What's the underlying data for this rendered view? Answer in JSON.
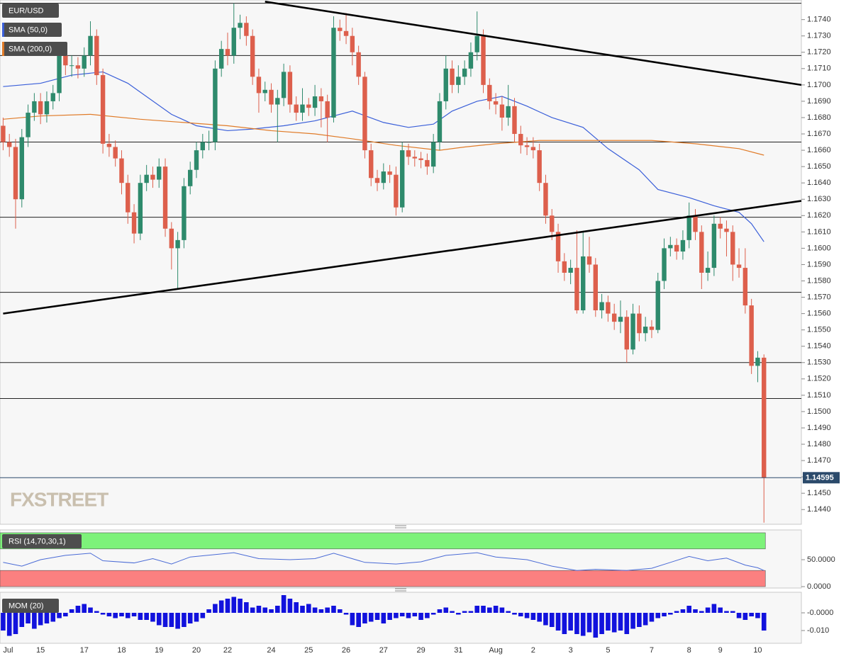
{
  "chart_data": [
    {
      "type": "candlestick",
      "title": "EUR/USD",
      "xlim": [
        -0.5,
        128
      ],
      "ylim": [
        1.1431,
        1.1752
      ],
      "yticks": [
        {
          "value": 1.144,
          "label": "1.1440"
        },
        {
          "value": 1.145,
          "label": "1.1450"
        },
        {
          "value": 1.146,
          "label": "1.1460"
        },
        {
          "value": 1.147,
          "label": "1.1470"
        },
        {
          "value": 1.148,
          "label": "1.1480"
        },
        {
          "value": 1.149,
          "label": "1.1490"
        },
        {
          "value": 1.15,
          "label": "1.1500"
        },
        {
          "value": 1.151,
          "label": "1.1510"
        },
        {
          "value": 1.152,
          "label": "1.1520"
        },
        {
          "value": 1.153,
          "label": "1.1530"
        },
        {
          "value": 1.154,
          "label": "1.1540"
        },
        {
          "value": 1.155,
          "label": "1.1550"
        },
        {
          "value": 1.156,
          "label": "1.1560"
        },
        {
          "value": 1.157,
          "label": "1.1570"
        },
        {
          "value": 1.158,
          "label": "1.1580"
        },
        {
          "value": 1.159,
          "label": "1.1590"
        },
        {
          "value": 1.16,
          "label": "1.1600"
        },
        {
          "value": 1.161,
          "label": "1.1610"
        },
        {
          "value": 1.162,
          "label": "1.1620"
        },
        {
          "value": 1.163,
          "label": "1.1630"
        },
        {
          "value": 1.164,
          "label": "1.1640"
        },
        {
          "value": 1.165,
          "label": "1.1650"
        },
        {
          "value": 1.166,
          "label": "1.1660"
        },
        {
          "value": 1.167,
          "label": "1.1670"
        },
        {
          "value": 1.168,
          "label": "1.1680"
        },
        {
          "value": 1.169,
          "label": "1.1690"
        },
        {
          "value": 1.17,
          "label": "1.1700"
        },
        {
          "value": 1.171,
          "label": "1.1710"
        },
        {
          "value": 1.172,
          "label": "1.1720"
        },
        {
          "value": 1.173,
          "label": "1.1730"
        },
        {
          "value": 1.174,
          "label": "1.1740"
        }
      ],
      "up_color": "#2e8a6c",
      "down_color": "#dd5f4c",
      "open": [
        1.1675,
        1.1665,
        1.1662,
        1.163,
        1.1668,
        1.1683,
        1.169,
        1.1682,
        1.169,
        1.1695,
        1.1718,
        1.1712,
        1.1712,
        1.171,
        1.1718,
        1.173,
        1.1706,
        1.1664,
        1.1662,
        1.1655,
        1.164,
        1.1622,
        1.1609,
        1.164,
        1.1645,
        1.1642,
        1.165,
        1.1612,
        1.16,
        1.1605,
        1.1638,
        1.1648,
        1.166,
        1.1665,
        1.1665,
        1.171,
        1.1722,
        1.1718,
        1.1735,
        1.1738,
        1.173,
        1.1705,
        1.1695,
        1.1697,
        1.1688,
        1.1692,
        1.1708,
        1.1688,
        1.1683,
        1.1688,
        1.1686,
        1.1693,
        1.169,
        1.168,
        1.1735,
        1.1733,
        1.173,
        1.172,
        1.1705,
        1.166,
        1.1643,
        1.164,
        1.1647,
        1.1645,
        1.1625,
        1.166,
        1.1656,
        1.1655,
        1.1654,
        1.165,
        1.1665,
        1.169,
        1.171,
        1.17,
        1.1705,
        1.171,
        1.172,
        1.173,
        1.17,
        1.169,
        1.1688,
        1.168,
        1.1687,
        1.167,
        1.1663,
        1.1662,
        1.166,
        1.164,
        1.162,
        1.161,
        1.1592,
        1.1585,
        1.1588,
        1.1562,
        1.1595,
        1.159,
        1.1562,
        1.1567,
        1.156,
        1.1555,
        1.1558,
        1.1538,
        1.156,
        1.1548,
        1.1552,
        1.155,
        1.158,
        1.16,
        1.1602,
        1.1598,
        1.1605,
        1.162,
        1.161,
        1.1585,
        1.1588,
        1.1615,
        1.1612,
        1.161,
        1.159,
        1.1588,
        1.1565,
        1.1528,
        1.1533
      ],
      "high": [
        1.168,
        1.167,
        1.1667,
        1.1673,
        1.1688,
        1.1695,
        1.1695,
        1.1696,
        1.17,
        1.1724,
        1.1722,
        1.1718,
        1.1717,
        1.1723,
        1.1739,
        1.1734,
        1.171,
        1.167,
        1.1666,
        1.166,
        1.1645,
        1.1627,
        1.1645,
        1.1651,
        1.165,
        1.1655,
        1.1655,
        1.1616,
        1.161,
        1.1643,
        1.1653,
        1.1665,
        1.167,
        1.1672,
        1.1715,
        1.1727,
        1.1732,
        1.175,
        1.1743,
        1.1742,
        1.1734,
        1.171,
        1.1702,
        1.1701,
        1.1697,
        1.1713,
        1.1712,
        1.1693,
        1.1698,
        1.1692,
        1.17,
        1.1698,
        1.1694,
        1.1742,
        1.174,
        1.1744,
        1.1735,
        1.1724,
        1.1708,
        1.1664,
        1.1648,
        1.1652,
        1.1651,
        1.165,
        1.1665,
        1.1664,
        1.166,
        1.1659,
        1.1658,
        1.167,
        1.1695,
        1.1718,
        1.1715,
        1.1712,
        1.1715,
        1.1726,
        1.1745,
        1.1734,
        1.1704,
        1.1695,
        1.1693,
        1.17,
        1.1692,
        1.1675,
        1.1668,
        1.1668,
        1.1664,
        1.1645,
        1.1624,
        1.1615,
        1.1597,
        1.1593,
        1.1611,
        1.161,
        1.1607,
        1.1594,
        1.1572,
        1.1571,
        1.1566,
        1.1568,
        1.1562,
        1.1566,
        1.1565,
        1.1558,
        1.1556,
        1.1585,
        1.1606,
        1.1607,
        1.1606,
        1.1611,
        1.1628,
        1.1624,
        1.1614,
        1.1598,
        1.162,
        1.1619,
        1.1617,
        1.1614,
        1.16,
        1.16,
        1.1569,
        1.1537,
        1.1535
      ],
      "low": [
        1.166,
        1.1656,
        1.1612,
        1.1625,
        1.1662,
        1.1678,
        1.1676,
        1.1677,
        1.1685,
        1.169,
        1.1706,
        1.1705,
        1.1704,
        1.1705,
        1.1712,
        1.17,
        1.1658,
        1.1656,
        1.165,
        1.1633,
        1.1615,
        1.1603,
        1.1605,
        1.1635,
        1.1637,
        1.1637,
        1.1607,
        1.1587,
        1.1575,
        1.16,
        1.1633,
        1.1643,
        1.1655,
        1.166,
        1.166,
        1.1705,
        1.1712,
        1.1713,
        1.1728,
        1.1724,
        1.17,
        1.1683,
        1.169,
        1.1683,
        1.1665,
        1.1687,
        1.1683,
        1.1678,
        1.1678,
        1.1681,
        1.1681,
        1.1674,
        1.1665,
        1.1677,
        1.1727,
        1.1725,
        1.1712,
        1.17,
        1.1655,
        1.1638,
        1.1635,
        1.1636,
        1.164,
        1.162,
        1.1622,
        1.1651,
        1.165,
        1.1649,
        1.1645,
        1.1646,
        1.166,
        1.1685,
        1.1695,
        1.1695,
        1.17,
        1.1705,
        1.1715,
        1.1695,
        1.1685,
        1.1682,
        1.1672,
        1.1675,
        1.1665,
        1.1658,
        1.1657,
        1.1655,
        1.1635,
        1.1615,
        1.1605,
        1.1585,
        1.158,
        1.1578,
        1.156,
        1.156,
        1.1585,
        1.1558,
        1.1557,
        1.1555,
        1.155,
        1.1548,
        1.153,
        1.1535,
        1.1543,
        1.1543,
        1.1545,
        1.1548,
        1.1575,
        1.1595,
        1.1593,
        1.1593,
        1.16,
        1.1605,
        1.1575,
        1.158,
        1.1583,
        1.1606,
        1.1595,
        1.158,
        1.1582,
        1.156,
        1.1523,
        1.1518,
        1.1432
      ],
      "close": [
        1.1665,
        1.1662,
        1.163,
        1.1668,
        1.1683,
        1.169,
        1.1682,
        1.169,
        1.1695,
        1.1718,
        1.1712,
        1.1712,
        1.171,
        1.1718,
        1.173,
        1.1706,
        1.1664,
        1.1662,
        1.1655,
        1.164,
        1.1622,
        1.1609,
        1.164,
        1.1645,
        1.1642,
        1.165,
        1.1612,
        1.16,
        1.1605,
        1.1638,
        1.1648,
        1.166,
        1.1665,
        1.1665,
        1.171,
        1.1722,
        1.1718,
        1.1735,
        1.1738,
        1.173,
        1.1705,
        1.1695,
        1.1697,
        1.1688,
        1.1692,
        1.1708,
        1.1688,
        1.1683,
        1.1688,
        1.1686,
        1.1693,
        1.169,
        1.168,
        1.1735,
        1.1733,
        1.173,
        1.172,
        1.1705,
        1.166,
        1.1643,
        1.164,
        1.1647,
        1.1645,
        1.1625,
        1.166,
        1.1656,
        1.1655,
        1.1654,
        1.165,
        1.1665,
        1.169,
        1.171,
        1.17,
        1.1705,
        1.171,
        1.172,
        1.173,
        1.17,
        1.169,
        1.1688,
        1.168,
        1.1687,
        1.167,
        1.1663,
        1.1662,
        1.166,
        1.164,
        1.162,
        1.161,
        1.1592,
        1.1585,
        1.1588,
        1.1562,
        1.1595,
        1.159,
        1.1562,
        1.1567,
        1.156,
        1.1555,
        1.1558,
        1.1538,
        1.156,
        1.1548,
        1.1552,
        1.155,
        1.158,
        1.16,
        1.1602,
        1.1598,
        1.1605,
        1.162,
        1.161,
        1.1585,
        1.1588,
        1.1615,
        1.1612,
        1.161,
        1.159,
        1.1588,
        1.1565,
        1.1528,
        1.1533,
        1.14595
      ],
      "overlays": [
        {
          "name": "SMA (50,0)",
          "color": "#3a5fd9",
          "x": [
            0,
            6,
            11,
            16,
            20,
            27,
            31,
            36,
            40,
            45,
            50,
            53,
            56,
            61,
            65,
            69,
            72,
            76,
            80,
            84,
            88,
            93,
            97,
            102,
            105,
            110,
            114,
            118,
            120,
            122
          ],
          "values": [
            1.1699,
            1.1701,
            1.1706,
            1.1708,
            1.1701,
            1.1682,
            1.1675,
            1.1672,
            1.1673,
            1.1675,
            1.1678,
            1.1681,
            1.1684,
            1.1677,
            1.1674,
            1.1676,
            1.1684,
            1.169,
            1.1693,
            1.1687,
            1.168,
            1.1674,
            1.1661,
            1.1648,
            1.1636,
            1.1631,
            1.1626,
            1.1622,
            1.1615,
            1.1604
          ]
        },
        {
          "name": "SMA (200,0)",
          "color": "#e07b28",
          "x": [
            0,
            6,
            14,
            22,
            29,
            36,
            43,
            50,
            56,
            63,
            70,
            74,
            79,
            86,
            95,
            104,
            111,
            118,
            122
          ],
          "values": [
            1.1679,
            1.1681,
            1.1682,
            1.1679,
            1.1677,
            1.1675,
            1.1672,
            1.167,
            1.1667,
            1.1663,
            1.166,
            1.1662,
            1.1664,
            1.1666,
            1.1666,
            1.1666,
            1.1664,
            1.1661,
            1.1657
          ]
        }
      ],
      "levels": [
        1.175,
        1.1718,
        1.1665,
        1.1619,
        1.1573,
        1.153,
        1.1508
      ],
      "trendlines": [
        {
          "x": [
            42,
            128
          ],
          "values": [
            1.1751,
            1.17
          ]
        },
        {
          "x": [
            0,
            128
          ],
          "values": [
            1.156,
            1.1629
          ]
        }
      ],
      "last_price": 1.14595,
      "watermark": "FXSTREET"
    },
    {
      "type": "line",
      "title": "RSI (14,70,30,1)",
      "ylim": [
        0,
        100
      ],
      "yticks": [
        {
          "value": 50,
          "label": "50.0000"
        },
        {
          "value": 0,
          "label": "0.0000"
        }
      ],
      "bands": [
        {
          "from": 70,
          "to": 100,
          "color": "#7df27a"
        },
        {
          "from": 0,
          "to": 30,
          "color": "#fb8080"
        }
      ],
      "series": [
        {
          "color": "#4a6bd6",
          "x": [
            0,
            3,
            6,
            10,
            14,
            16,
            21,
            24,
            27,
            30,
            37,
            41,
            46,
            50,
            53,
            58,
            63,
            67,
            71,
            76,
            79,
            84,
            88,
            92,
            95,
            100,
            104,
            107,
            110,
            113,
            116,
            119,
            121,
            122
          ],
          "values": [
            45,
            38,
            50,
            58,
            62,
            48,
            44,
            52,
            42,
            55,
            63,
            52,
            50,
            52,
            62,
            45,
            42,
            46,
            58,
            63,
            55,
            50,
            38,
            30,
            32,
            30,
            34,
            45,
            56,
            48,
            53,
            40,
            35,
            30
          ]
        }
      ]
    },
    {
      "type": "bar",
      "title": "MOM (20)",
      "ylim": [
        -0.016,
        0.01
      ],
      "yticks": [
        {
          "value": 0,
          "label": "-0.0000"
        },
        {
          "value": -0.01,
          "label": "-0.010"
        }
      ],
      "color": "#1212dd",
      "categories": [
        "Jul",
        null,
        null,
        null,
        null,
        null,
        "15",
        null,
        null,
        null,
        null,
        null,
        null,
        "17",
        null,
        null,
        null,
        null,
        null,
        "18",
        null,
        null,
        null,
        null,
        null,
        "19",
        null,
        null,
        null,
        null,
        null,
        "20",
        null,
        null,
        null,
        null,
        "22",
        null,
        null,
        null,
        null,
        null,
        null,
        "24",
        null,
        null,
        null,
        null,
        null,
        "25",
        null,
        null,
        null,
        null,
        null,
        "26",
        null,
        null,
        null,
        null,
        null,
        "27",
        null,
        null,
        null,
        null,
        null,
        "29",
        null,
        null,
        null,
        null,
        null,
        "31",
        null,
        null,
        null,
        null,
        null,
        "Aug",
        null,
        null,
        null,
        null,
        null,
        "2",
        null,
        null,
        null,
        null,
        null,
        "3",
        null,
        null,
        null,
        null,
        null,
        "5",
        null,
        null,
        null,
        null,
        null,
        null,
        "7",
        null,
        null,
        null,
        null,
        null,
        "8",
        null,
        null,
        null,
        null,
        "9",
        null,
        null,
        null,
        null,
        null,
        "10",
        null
      ],
      "values": [
        -0.01,
        -0.013,
        -0.012,
        -0.008,
        -0.006,
        -0.009,
        -0.007,
        -0.006,
        -0.005,
        -0.003,
        -0.002,
        0.002,
        0.004,
        0.005,
        0.003,
        0.001,
        -0.001,
        -0.002,
        -0.003,
        -0.002,
        -0.003,
        -0.002,
        -0.004,
        -0.004,
        -0.005,
        -0.007,
        -0.008,
        -0.008,
        -0.009,
        -0.008,
        -0.006,
        -0.005,
        -0.003,
        0.002,
        0.005,
        0.007,
        0.008,
        0.009,
        0.008,
        0.006,
        0.003,
        0.004,
        0.003,
        0.002,
        0.004,
        0.01,
        0.008,
        0.006,
        0.004,
        0.005,
        0.003,
        0.002,
        0.003,
        0.004,
        0.002,
        -0.001,
        -0.007,
        -0.008,
        -0.006,
        -0.005,
        -0.004,
        -0.006,
        -0.004,
        -0.003,
        -0.002,
        -0.003,
        -0.002,
        -0.004,
        -0.003,
        -0.001,
        0.002,
        0.003,
        0.001,
        -0.001,
        0.001,
        0.001,
        0.004,
        0.004,
        0.003,
        0.004,
        0.003,
        0.001,
        -0.001,
        -0.002,
        -0.003,
        -0.004,
        -0.005,
        -0.007,
        -0.008,
        -0.01,
        -0.012,
        -0.01,
        -0.012,
        -0.013,
        -0.011,
        -0.014,
        -0.012,
        -0.01,
        -0.011,
        -0.01,
        -0.012,
        -0.009,
        -0.008,
        -0.007,
        -0.005,
        -0.003,
        -0.002,
        -0.001,
        0.001,
        0.002,
        0.004,
        0.002,
        0.001,
        0.003,
        0.005,
        0.003,
        0.001,
        0.001,
        -0.003,
        -0.004,
        -0.002,
        -0.003,
        -0.01
      ]
    }
  ]
}
